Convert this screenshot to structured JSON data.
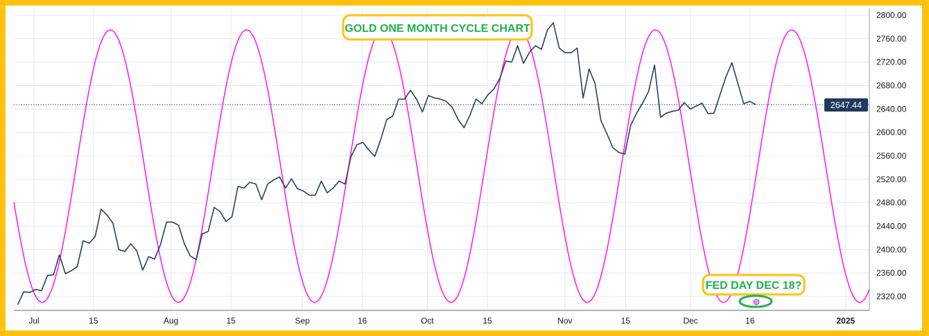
{
  "chart_data": {
    "type": "line",
    "title": "GOLD ONE MONTH CYCLE CHART",
    "annotation": "FED DAY DEC 18?",
    "last_price_label": "2647.44",
    "ylim": [
      2300,
      2810
    ],
    "y_ticks": [
      "2800.00",
      "2760.00",
      "2720.00",
      "2680.00",
      "2640.00",
      "2600.00",
      "2560.00",
      "2520.00",
      "2480.00",
      "2440.00",
      "2400.00",
      "2360.00",
      "2320.00"
    ],
    "x_ticks": [
      "Jul",
      "15",
      "Aug",
      "15",
      "Sep",
      "16",
      "Oct",
      "15",
      "Nov",
      "15",
      "Dec",
      "16",
      "2025"
    ],
    "grid": true,
    "colors": {
      "price": "#2a3f5f",
      "cycle": "#ff1ff5",
      "frame": "#FFC20E",
      "annotation_text": "#22b14c",
      "annotation_border": "#FFC20E",
      "price_label_bg": "#1f3a5c"
    },
    "series": [
      {
        "values": [
          2306,
          2328,
          2327,
          2332,
          2330,
          2356,
          2357,
          2391,
          2359,
          2364,
          2371,
          2415,
          2411,
          2422,
          2469,
          2459,
          2445,
          2400,
          2397,
          2410,
          2398,
          2365,
          2388,
          2384,
          2409,
          2447,
          2447,
          2442,
          2410,
          2389,
          2383,
          2427,
          2431,
          2472,
          2465,
          2448,
          2456,
          2508,
          2505,
          2515,
          2512,
          2485,
          2512,
          2519,
          2524,
          2505,
          2521,
          2504,
          2500,
          2493,
          2493,
          2517,
          2497,
          2505,
          2517,
          2512,
          2559,
          2579,
          2583,
          2570,
          2559,
          2588,
          2622,
          2628,
          2657,
          2657,
          2672,
          2657,
          2635,
          2663,
          2659,
          2657,
          2653,
          2643,
          2622,
          2608,
          2630,
          2657,
          2649,
          2664,
          2674,
          2692,
          2722,
          2720,
          2748,
          2718,
          2737,
          2748,
          2742,
          2775,
          2787,
          2744,
          2736,
          2736,
          2744,
          2659,
          2708,
          2684,
          2620,
          2598,
          2574,
          2566,
          2563,
          2612,
          2633,
          2650,
          2670,
          2715,
          2626,
          2633,
          2636,
          2638,
          2651,
          2640,
          2645,
          2650,
          2632,
          2633,
          2664,
          2695,
          2719,
          2684,
          2649,
          2653,
          2647.44
        ]
      },
      {
        "cycle": {
          "low": 2310,
          "high": 2775,
          "period": "one month",
          "low_date": "Dec 18"
        }
      }
    ]
  }
}
